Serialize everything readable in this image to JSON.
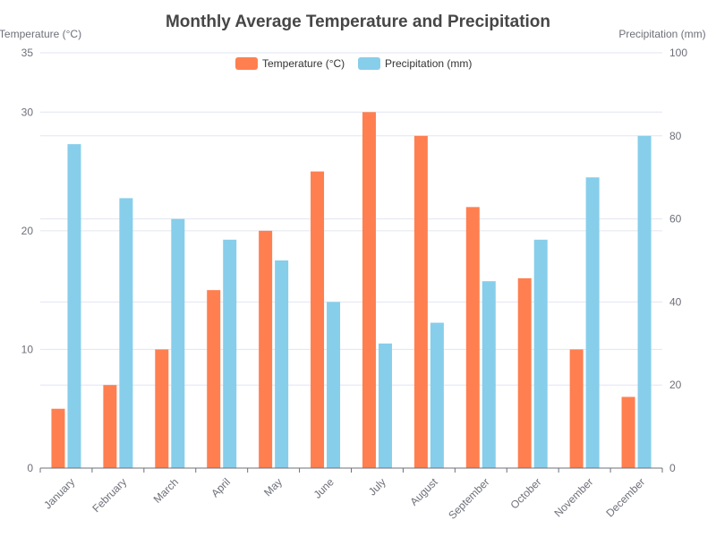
{
  "chart_data": {
    "type": "bar",
    "title": "Monthly Average Temperature and Precipitation",
    "categories": [
      "January",
      "February",
      "March",
      "April",
      "May",
      "June",
      "July",
      "August",
      "September",
      "October",
      "November",
      "December"
    ],
    "series": [
      {
        "name": "Temperature (°C)",
        "axis": "left",
        "color": "#ff7f50",
        "values": [
          5,
          7,
          10,
          15,
          20,
          25,
          30,
          28,
          22,
          16,
          10,
          6
        ]
      },
      {
        "name": "Precipitation (mm)",
        "axis": "right",
        "color": "#87ceeb",
        "values": [
          78,
          65,
          60,
          55,
          50,
          40,
          30,
          35,
          45,
          55,
          70,
          80
        ]
      }
    ],
    "y_left": {
      "label": "Temperature (°C)",
      "min": 0,
      "max": 35,
      "ticks": [
        0,
        10,
        20,
        30,
        35
      ]
    },
    "y_right": {
      "label": "Precipitation (mm)",
      "min": 0,
      "max": 100,
      "ticks": [
        0,
        20,
        40,
        60,
        80,
        100
      ]
    },
    "legend_position": "top-center",
    "grid": true
  }
}
